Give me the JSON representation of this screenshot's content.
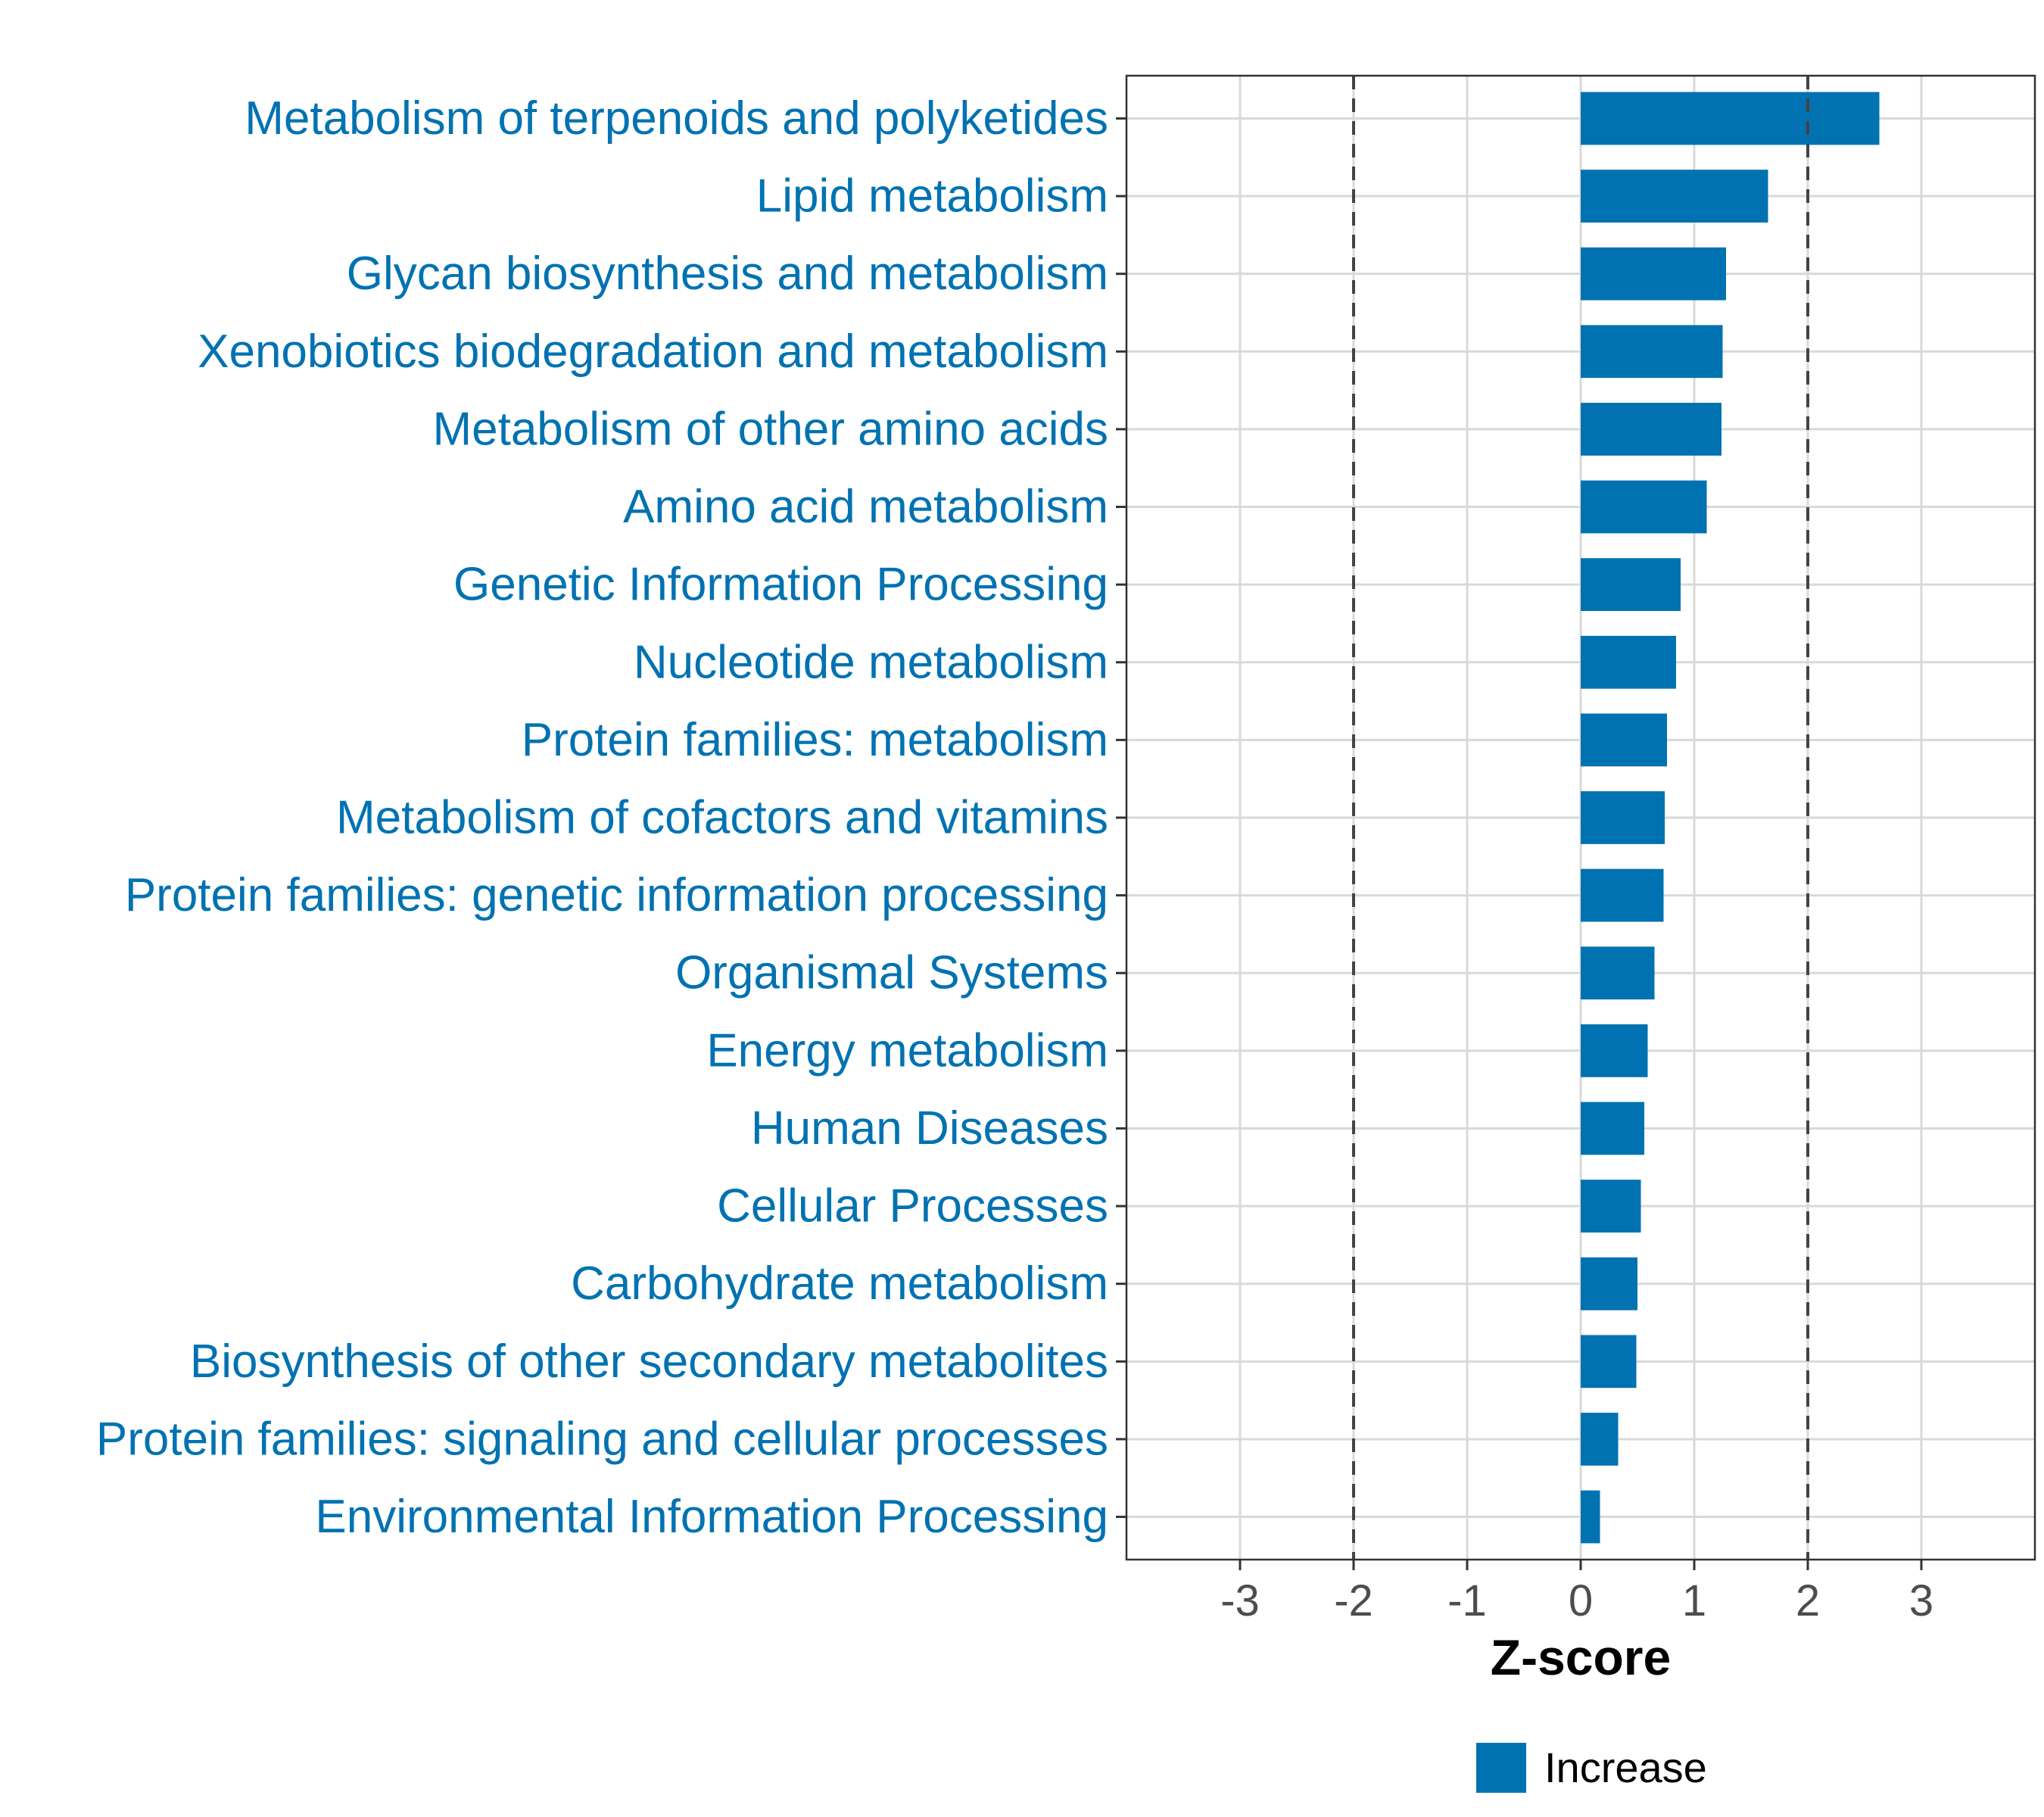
{
  "chart_data": {
    "type": "bar",
    "orientation": "horizontal",
    "categories": [
      "Metabolism of terpenoids and polyketides",
      "Lipid metabolism",
      "Glycan biosynthesis and metabolism",
      "Xenobiotics biodegradation and metabolism",
      "Metabolism of other amino acids",
      "Amino acid metabolism",
      "Genetic Information Processing",
      "Nucleotide metabolism",
      "Protein families: metabolism",
      "Metabolism of cofactors and vitamins",
      "Protein families: genetic information processing",
      "Organismal Systems",
      "Energy metabolism",
      "Human Diseases",
      "Cellular Processes",
      "Carbohydrate metabolism",
      "Biosynthesis of other secondary metabolites",
      "Protein families: signaling and cellular processes",
      "Environmental Information Processing"
    ],
    "values": [
      2.63,
      1.65,
      1.28,
      1.25,
      1.24,
      1.11,
      0.88,
      0.84,
      0.76,
      0.74,
      0.73,
      0.65,
      0.59,
      0.56,
      0.53,
      0.5,
      0.49,
      0.33,
      0.17
    ],
    "xlabel": "Z-score",
    "ylabel": "",
    "xlim": [
      -4,
      4
    ],
    "xticks": [
      -3,
      -2,
      -1,
      0,
      1,
      2,
      3
    ],
    "xtick_labels": [
      "-3",
      "-2",
      "-1",
      "0",
      "1",
      "2",
      "3"
    ],
    "threshold_lines": [
      -2,
      2
    ],
    "grid": true,
    "bar_color": "#0072b2",
    "label_color": "#0072b2",
    "legend": {
      "position": "bottom",
      "entries": [
        {
          "label": "Increase",
          "color": "#0072b2"
        }
      ]
    }
  }
}
